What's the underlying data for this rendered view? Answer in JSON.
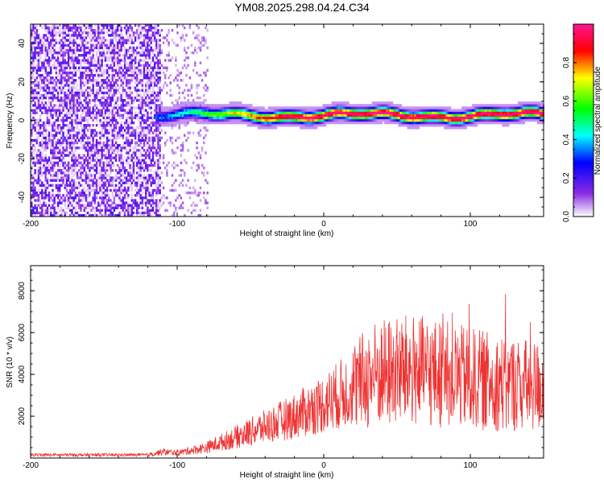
{
  "title": "YM08.2025.298.04.24.C34",
  "chart_data": [
    {
      "type": "heatmap",
      "name": "spectrogram",
      "xlabel": "Height of straight line (km)",
      "ylabel": "Frequency (Hz)",
      "xlim": [
        -200,
        150
      ],
      "ylim": [
        -50,
        50
      ],
      "xticks": [
        -200,
        -100,
        0,
        100
      ],
      "xtick_labels": [
        "-200",
        "-100",
        "0",
        "100"
      ],
      "yticks": [
        40,
        20,
        0,
        -20,
        -40
      ],
      "ytick_labels": [
        "40",
        "20",
        "0",
        "-20",
        "-40"
      ],
      "colorbar": {
        "label": "Normalized spectral amplitude",
        "range": [
          0,
          1
        ],
        "ticks": [
          0.0,
          0.2,
          0.4,
          0.6,
          0.8
        ],
        "tick_labels": [
          "0.0",
          "0.2",
          "0.4",
          "0.6",
          "0.8"
        ],
        "colors": [
          "#ffffff",
          "#8a2be2",
          "#0000ff",
          "#00ffff",
          "#00ff00",
          "#ffff00",
          "#ff0000",
          "#ff1493"
        ]
      },
      "noise_region_km": [
        -200,
        -112
      ],
      "signal_band": {
        "x_start_km": -115,
        "center_hz": 2,
        "halfwidth_hz": 3
      }
    },
    {
      "type": "line",
      "name": "snr",
      "xlabel": "Height of straight line (km)",
      "ylabel": "SNR (10 * v/v)",
      "xlim": [
        -200,
        150
      ],
      "ylim": [
        0,
        9200
      ],
      "xticks": [
        -200,
        -100,
        0,
        100
      ],
      "xtick_labels": [
        "-200",
        "-100",
        "0",
        "100"
      ],
      "yticks": [
        2000,
        4000,
        6000,
        8000
      ],
      "ytick_labels": [
        "2000",
        "4000",
        "6000",
        "8000"
      ],
      "color": "#ee3333",
      "trend": {
        "x": [
          -200,
          -120,
          -110,
          -100,
          -80,
          -60,
          -40,
          -20,
          0,
          20,
          35,
          60,
          80,
          100,
          120,
          150
        ],
        "y": [
          150,
          150,
          300,
          250,
          500,
          1000,
          1500,
          2000,
          2600,
          3400,
          4000,
          4200,
          4000,
          3800,
          3600,
          3400
        ]
      }
    }
  ]
}
